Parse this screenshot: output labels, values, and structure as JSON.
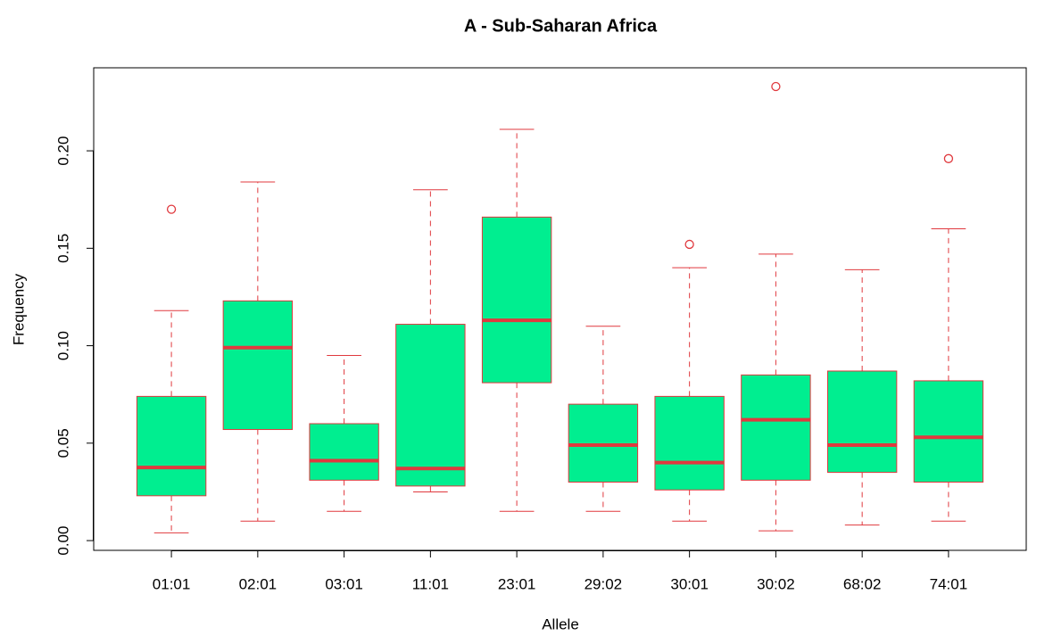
{
  "chart_data": {
    "type": "boxplot",
    "title": "A - Sub-Saharan Africa",
    "x_label": "Allele",
    "y_label": "Frequency",
    "categories": [
      "01:01",
      "02:01",
      "03:01",
      "11:01",
      "23:01",
      "29:02",
      "30:01",
      "30:02",
      "68:02",
      "74:01"
    ],
    "boxes": [
      {
        "min": 0.004,
        "q1": 0.023,
        "median": 0.0375,
        "q3": 0.074,
        "max": 0.118,
        "outliers": [
          0.17
        ]
      },
      {
        "min": 0.01,
        "q1": 0.057,
        "median": 0.099,
        "q3": 0.123,
        "max": 0.184,
        "outliers": []
      },
      {
        "min": 0.015,
        "q1": 0.031,
        "median": 0.041,
        "q3": 0.06,
        "max": 0.095,
        "outliers": []
      },
      {
        "min": 0.025,
        "q1": 0.028,
        "median": 0.037,
        "q3": 0.111,
        "max": 0.18,
        "outliers": []
      },
      {
        "min": 0.015,
        "q1": 0.081,
        "median": 0.113,
        "q3": 0.166,
        "max": 0.211,
        "outliers": []
      },
      {
        "min": 0.015,
        "q1": 0.03,
        "median": 0.049,
        "q3": 0.07,
        "max": 0.11,
        "outliers": []
      },
      {
        "min": 0.01,
        "q1": 0.026,
        "median": 0.04,
        "q3": 0.074,
        "max": 0.14,
        "outliers": [
          0.152
        ]
      },
      {
        "min": 0.005,
        "q1": 0.031,
        "median": 0.062,
        "q3": 0.085,
        "max": 0.147,
        "outliers": [
          0.233
        ]
      },
      {
        "min": 0.008,
        "q1": 0.035,
        "median": 0.049,
        "q3": 0.087,
        "max": 0.139,
        "outliers": []
      },
      {
        "min": 0.01,
        "q1": 0.03,
        "median": 0.053,
        "q3": 0.082,
        "max": 0.16,
        "outliers": [
          0.196
        ]
      }
    ],
    "box_color": "#00ee90",
    "line_color": "#e0393e",
    "ylim": [
      -0.005,
      0.2426
    ],
    "yticks": [
      {
        "value": 0,
        "label": "0.00"
      },
      0.05,
      {
        "value": 0.1,
        "label": "0.10"
      },
      0.15,
      {
        "value": 0.2,
        "label": "0.20"
      }
    ]
  }
}
